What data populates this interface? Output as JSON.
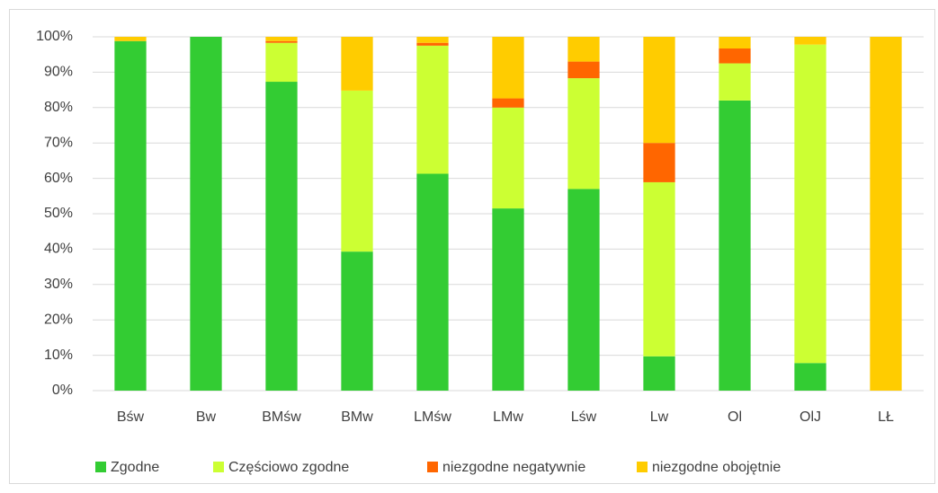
{
  "chart_data": {
    "type": "stacked_bar",
    "categories": [
      "Bśw",
      "Bw",
      "BMśw",
      "BMw",
      "LMśw",
      "LMw",
      "Lśw",
      "Lw",
      "Ol",
      "OlJ",
      "LŁ"
    ],
    "series": [
      {
        "name": "Zgodne",
        "color": "#33cc33",
        "values": [
          98.8,
          100,
          87.3,
          39.3,
          61.3,
          51.5,
          57,
          9.7,
          82,
          7.8,
          0
        ]
      },
      {
        "name": "Częściowo zgodne",
        "color": "#ccff33",
        "values": [
          0,
          0,
          11,
          45.5,
          36.2,
          28.5,
          31.3,
          49.2,
          10.5,
          90,
          0
        ]
      },
      {
        "name": "niezgodne negatywnie",
        "color": "#ff6600",
        "values": [
          0,
          0,
          0.5,
          0,
          0.8,
          2.6,
          4.7,
          11.1,
          4.2,
          0,
          0
        ]
      },
      {
        "name": "niezgodne obojętnie",
        "color": "#ffcc00",
        "values": [
          1.2,
          0,
          1.2,
          15.2,
          1.7,
          17.4,
          7,
          30,
          3.3,
          2.2,
          100
        ]
      }
    ],
    "ylim": [
      0,
      100
    ],
    "yticks": [
      {
        "value": 0,
        "label": "0%"
      },
      {
        "value": 10,
        "label": "10%"
      },
      {
        "value": 20,
        "label": "20%"
      },
      {
        "value": 30,
        "label": "30%"
      },
      {
        "value": 40,
        "label": "40%"
      },
      {
        "value": 50,
        "label": "50%"
      },
      {
        "value": 60,
        "label": "60%"
      },
      {
        "value": 70,
        "label": "70%"
      },
      {
        "value": 80,
        "label": "80%"
      },
      {
        "value": 90,
        "label": "90%"
      },
      {
        "value": 100,
        "label": "100%"
      }
    ],
    "grid": true,
    "legend": "bottom"
  }
}
